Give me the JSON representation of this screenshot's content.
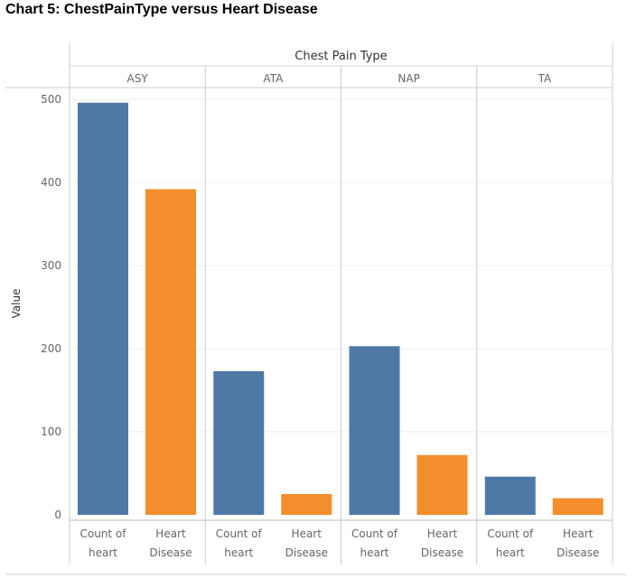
{
  "caption": "Chart 5: ChestPainType versus Heart Disease",
  "chart_data": {
    "type": "bar",
    "column_header": "Chest Pain Type",
    "ylabel": "Value",
    "ylim": [
      0,
      520
    ],
    "yticks": [
      0,
      100,
      200,
      300,
      400,
      500
    ],
    "groups": [
      "ASY",
      "ATA",
      "NAP",
      "TA"
    ],
    "measures": [
      {
        "label_line1": "Count of",
        "label_line2": "heart",
        "color": "#4e79a7"
      },
      {
        "label_line1": "Heart",
        "label_line2": "Disease",
        "color": "#f28e2b"
      }
    ],
    "series": [
      {
        "values": [
          496,
          173,
          203,
          46
        ]
      },
      {
        "values": [
          392,
          25,
          72,
          20
        ]
      }
    ],
    "grid": true,
    "legend": "none"
  }
}
